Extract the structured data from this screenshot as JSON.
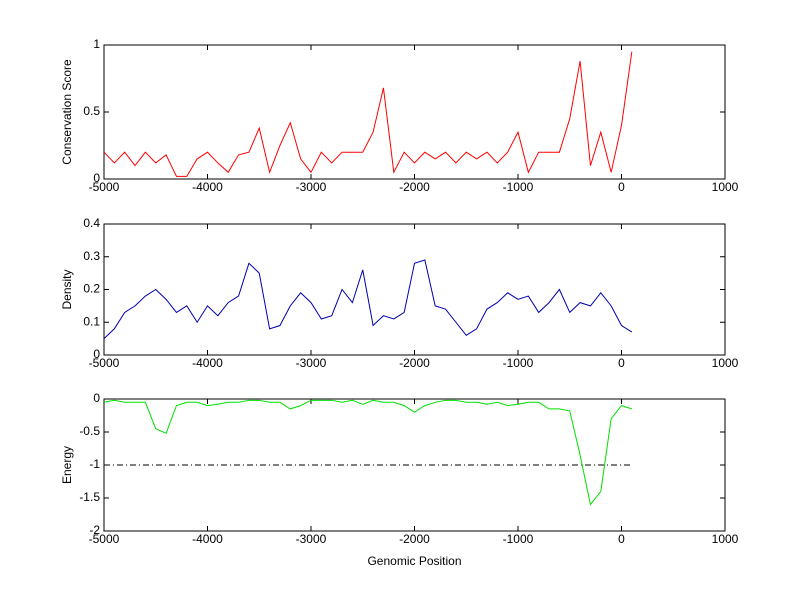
{
  "chart_data": [
    {
      "type": "line",
      "ylabel": "Conservation Score",
      "x": [
        -5000,
        -4900,
        -4800,
        -4700,
        -4600,
        -4500,
        -4400,
        -4300,
        -4200,
        -4100,
        -4000,
        -3900,
        -3800,
        -3700,
        -3600,
        -3500,
        -3400,
        -3300,
        -3200,
        -3100,
        -3000,
        -2900,
        -2800,
        -2700,
        -2600,
        -2500,
        -2400,
        -2300,
        -2200,
        -2100,
        -2000,
        -1900,
        -1800,
        -1700,
        -1600,
        -1500,
        -1400,
        -1300,
        -1200,
        -1100,
        -1000,
        -900,
        -800,
        -700,
        -600,
        -500,
        -400,
        -300,
        -200,
        -100,
        0,
        100
      ],
      "series": [
        {
          "color": "#ff0000",
          "values": [
            0.2,
            0.12,
            0.2,
            0.1,
            0.2,
            0.12,
            0.18,
            0.02,
            0.02,
            0.15,
            0.2,
            0.12,
            0.05,
            0.18,
            0.2,
            0.38,
            0.05,
            0.25,
            0.42,
            0.15,
            0.05,
            0.2,
            0.12,
            0.2,
            0.2,
            0.2,
            0.35,
            0.68,
            0.05,
            0.2,
            0.12,
            0.2,
            0.15,
            0.2,
            0.12,
            0.2,
            0.15,
            0.2,
            0.12,
            0.2,
            0.35,
            0.05,
            0.2,
            0.2,
            0.2,
            0.45,
            0.88,
            0.1,
            0.35,
            0.05,
            0.4,
            0.95
          ]
        }
      ],
      "xlim": [
        -5000,
        1000
      ],
      "xticks": [
        -5000,
        -4000,
        -3000,
        -2000,
        -1000,
        0,
        1000
      ],
      "ylim": [
        0,
        1
      ],
      "yticks": [
        0,
        0.5,
        1
      ]
    },
    {
      "type": "line",
      "ylabel": "Density",
      "x": [
        -5000,
        -4900,
        -4800,
        -4700,
        -4600,
        -4500,
        -4400,
        -4300,
        -4200,
        -4100,
        -4000,
        -3900,
        -3800,
        -3700,
        -3600,
        -3500,
        -3400,
        -3300,
        -3200,
        -3100,
        -3000,
        -2900,
        -2800,
        -2700,
        -2600,
        -2500,
        -2400,
        -2300,
        -2200,
        -2100,
        -2000,
        -1900,
        -1800,
        -1700,
        -1600,
        -1500,
        -1400,
        -1300,
        -1200,
        -1100,
        -1000,
        -900,
        -800,
        -700,
        -600,
        -500,
        -400,
        -300,
        -200,
        -100,
        0,
        100
      ],
      "series": [
        {
          "color": "#0000b0",
          "values": [
            0.05,
            0.08,
            0.13,
            0.15,
            0.18,
            0.2,
            0.17,
            0.13,
            0.15,
            0.1,
            0.15,
            0.12,
            0.16,
            0.18,
            0.28,
            0.25,
            0.08,
            0.09,
            0.15,
            0.19,
            0.16,
            0.11,
            0.12,
            0.2,
            0.16,
            0.26,
            0.09,
            0.12,
            0.11,
            0.13,
            0.28,
            0.29,
            0.15,
            0.14,
            0.1,
            0.06,
            0.08,
            0.14,
            0.16,
            0.19,
            0.17,
            0.18,
            0.13,
            0.16,
            0.2,
            0.13,
            0.16,
            0.15,
            0.19,
            0.15,
            0.09,
            0.07
          ]
        }
      ],
      "xlim": [
        -5000,
        1000
      ],
      "xticks": [
        -5000,
        -4000,
        -3000,
        -2000,
        -1000,
        0,
        1000
      ],
      "ylim": [
        0,
        0.4
      ],
      "yticks": [
        0,
        0.1,
        0.2,
        0.3,
        0.4
      ]
    },
    {
      "type": "line",
      "ylabel": "Energy",
      "xlabel": "Genomic Position",
      "x": [
        -5000,
        -4900,
        -4800,
        -4700,
        -4600,
        -4500,
        -4400,
        -4300,
        -4200,
        -4100,
        -4000,
        -3900,
        -3800,
        -3700,
        -3600,
        -3500,
        -3400,
        -3300,
        -3200,
        -3100,
        -3000,
        -2900,
        -2800,
        -2700,
        -2600,
        -2500,
        -2400,
        -2300,
        -2200,
        -2100,
        -2000,
        -1900,
        -1800,
        -1700,
        -1600,
        -1500,
        -1400,
        -1300,
        -1200,
        -1100,
        -1000,
        -900,
        -800,
        -700,
        -600,
        -500,
        -400,
        -300,
        -200,
        -100,
        0,
        100
      ],
      "series": [
        {
          "color": "#00e000",
          "values": [
            -0.05,
            -0.02,
            -0.05,
            -0.05,
            -0.05,
            -0.45,
            -0.52,
            -0.1,
            -0.05,
            -0.05,
            -0.1,
            -0.08,
            -0.05,
            -0.05,
            -0.02,
            -0.02,
            -0.05,
            -0.05,
            -0.15,
            -0.1,
            -0.02,
            -0.02,
            -0.02,
            -0.05,
            -0.02,
            -0.08,
            -0.02,
            -0.05,
            -0.05,
            -0.1,
            -0.2,
            -0.1,
            -0.05,
            -0.02,
            -0.02,
            -0.05,
            -0.05,
            -0.08,
            -0.05,
            -0.1,
            -0.08,
            -0.05,
            -0.05,
            -0.15,
            -0.15,
            -0.18,
            -0.85,
            -1.6,
            -1.4,
            -0.3,
            -0.1,
            -0.15
          ]
        }
      ],
      "hline": -1,
      "hline_x": [
        -5000,
        100
      ],
      "xlim": [
        -5000,
        1000
      ],
      "xticks": [
        -5000,
        -4000,
        -3000,
        -2000,
        -1000,
        0,
        1000
      ],
      "ylim": [
        -2,
        0
      ],
      "yticks": [
        -2,
        -1.5,
        -1,
        -0.5,
        0
      ]
    }
  ]
}
